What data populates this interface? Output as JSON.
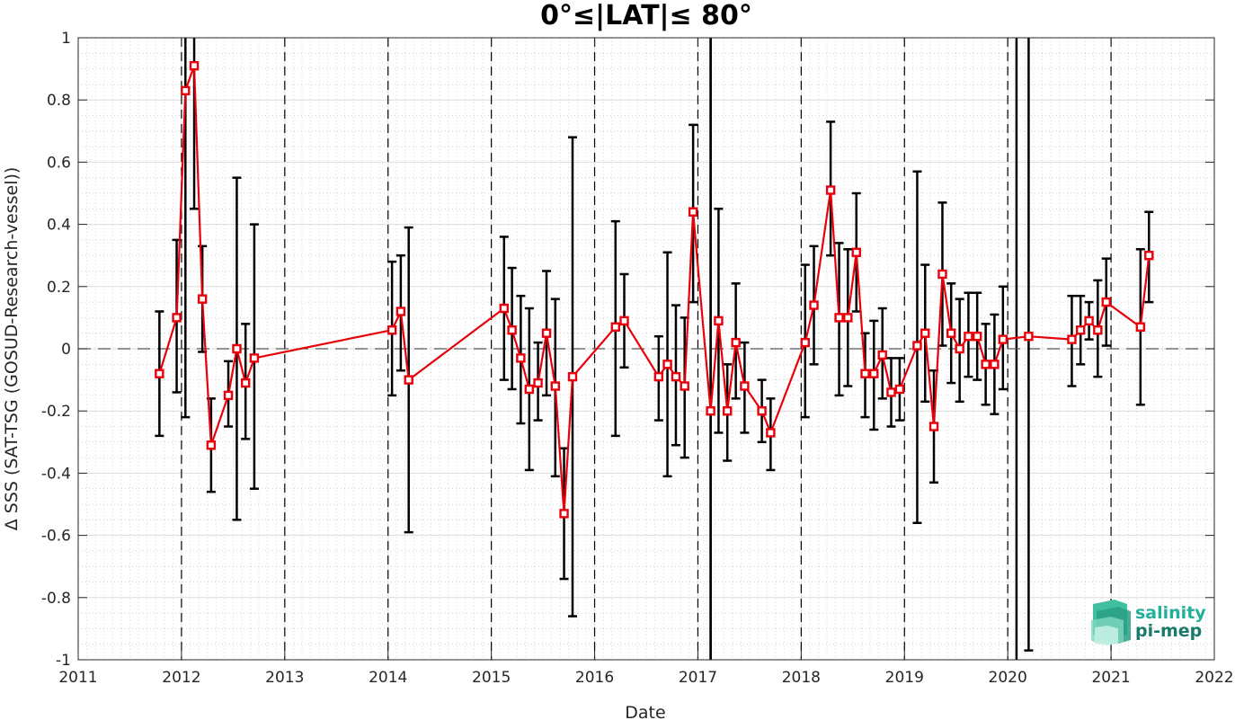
{
  "chart_data": {
    "type": "line",
    "title": "0°≤|LAT|≤ 80°",
    "xlabel": "Date",
    "ylabel": "Δ SSS (SAT-TSG (GOSUD-Research-vessel))",
    "xlim": [
      "2011-01-01",
      "2022-01-01"
    ],
    "ylim": [
      -1,
      1
    ],
    "x_ticks": [
      "2011",
      "2012",
      "2013",
      "2014",
      "2015",
      "2016",
      "2017",
      "2018",
      "2019",
      "2020",
      "2021",
      "2022"
    ],
    "y_ticks": [
      "-1",
      "-0.8",
      "-0.6",
      "-0.4",
      "-0.2",
      "0",
      "0.2",
      "0.4",
      "0.6",
      "0.8",
      "1"
    ],
    "grid": true,
    "minor_grid": true,
    "reference_line": 0,
    "year_boundaries_dashed": [
      "2012-01-01",
      "2013-01-01",
      "2014-01-01",
      "2015-01-01",
      "2016-01-01",
      "2017-01-01",
      "2018-01-01",
      "2019-01-01",
      "2020-01-01",
      "2021-01-01"
    ],
    "solid_vertical_lines": [
      "2017-02-15",
      "2020-02-01"
    ],
    "series": [
      {
        "color": "#e8000b",
        "marker": "square",
        "errorbar_color": "#000000",
        "points": [
          {
            "x": "2011-10-15",
            "y": -0.08,
            "lo": -0.28,
            "hi": 0.12
          },
          {
            "x": "2011-12-15",
            "y": 0.1,
            "lo": -0.14,
            "hi": 0.35
          },
          {
            "x": "2012-01-15",
            "y": 0.83,
            "lo": -0.22,
            "hi": 1.0
          },
          {
            "x": "2012-02-15",
            "y": 0.91,
            "lo": 0.45,
            "hi": 1.0
          },
          {
            "x": "2012-03-15",
            "y": 0.16,
            "lo": -0.01,
            "hi": 0.33
          },
          {
            "x": "2012-04-15",
            "y": -0.31,
            "lo": -0.46,
            "hi": -0.16
          },
          {
            "x": "2012-06-15",
            "y": -0.15,
            "lo": -0.25,
            "hi": -0.04
          },
          {
            "x": "2012-07-15",
            "y": 0.0,
            "lo": -0.55,
            "hi": 0.55
          },
          {
            "x": "2012-08-15",
            "y": -0.11,
            "lo": -0.29,
            "hi": 0.08
          },
          {
            "x": "2012-09-15",
            "y": -0.03,
            "lo": -0.45,
            "hi": 0.4
          },
          {
            "x": "2014-01-15",
            "y": 0.06,
            "lo": -0.15,
            "hi": 0.28
          },
          {
            "x": "2014-02-15",
            "y": 0.12,
            "lo": -0.07,
            "hi": 0.3
          },
          {
            "x": "2014-03-15",
            "y": -0.1,
            "lo": -0.59,
            "hi": 0.39
          },
          {
            "x": "2015-02-15",
            "y": 0.13,
            "lo": -0.1,
            "hi": 0.36
          },
          {
            "x": "2015-03-15",
            "y": 0.06,
            "lo": -0.13,
            "hi": 0.26
          },
          {
            "x": "2015-04-15",
            "y": -0.03,
            "lo": -0.24,
            "hi": 0.17
          },
          {
            "x": "2015-05-15",
            "y": -0.13,
            "lo": -0.39,
            "hi": 0.13
          },
          {
            "x": "2015-06-15",
            "y": -0.11,
            "lo": -0.23,
            "hi": 0.02
          },
          {
            "x": "2015-07-15",
            "y": 0.05,
            "lo": -0.15,
            "hi": 0.25
          },
          {
            "x": "2015-08-15",
            "y": -0.12,
            "lo": -0.41,
            "hi": 0.16
          },
          {
            "x": "2015-09-15",
            "y": -0.53,
            "lo": -0.74,
            "hi": -0.32
          },
          {
            "x": "2015-10-15",
            "y": -0.09,
            "lo": -0.86,
            "hi": 0.68
          },
          {
            "x": "2016-03-15",
            "y": 0.07,
            "lo": -0.28,
            "hi": 0.41
          },
          {
            "x": "2016-04-15",
            "y": 0.09,
            "lo": -0.06,
            "hi": 0.24
          },
          {
            "x": "2016-08-15",
            "y": -0.09,
            "lo": -0.23,
            "hi": 0.04
          },
          {
            "x": "2016-09-15",
            "y": -0.05,
            "lo": -0.41,
            "hi": 0.31
          },
          {
            "x": "2016-10-15",
            "y": -0.09,
            "lo": -0.31,
            "hi": 0.14
          },
          {
            "x": "2016-11-15",
            "y": -0.12,
            "lo": -0.35,
            "hi": 0.1
          },
          {
            "x": "2016-12-15",
            "y": 0.44,
            "lo": 0.15,
            "hi": 0.72
          },
          {
            "x": "2017-02-15",
            "y": -0.2,
            "lo": -1.0,
            "hi": 1.0
          },
          {
            "x": "2017-03-15",
            "y": 0.09,
            "lo": -0.27,
            "hi": 0.45
          },
          {
            "x": "2017-04-15",
            "y": -0.2,
            "lo": -0.36,
            "hi": -0.05
          },
          {
            "x": "2017-05-15",
            "y": 0.02,
            "lo": -0.16,
            "hi": 0.21
          },
          {
            "x": "2017-06-15",
            "y": -0.12,
            "lo": -0.27,
            "hi": 0.02
          },
          {
            "x": "2017-08-15",
            "y": -0.2,
            "lo": -0.3,
            "hi": -0.1
          },
          {
            "x": "2017-09-15",
            "y": -0.27,
            "lo": -0.39,
            "hi": -0.16
          },
          {
            "x": "2018-01-15",
            "y": 0.02,
            "lo": -0.22,
            "hi": 0.27
          },
          {
            "x": "2018-02-15",
            "y": 0.14,
            "lo": -0.05,
            "hi": 0.33
          },
          {
            "x": "2018-04-15",
            "y": 0.51,
            "lo": 0.3,
            "hi": 0.73
          },
          {
            "x": "2018-05-15",
            "y": 0.1,
            "lo": -0.15,
            "hi": 0.34
          },
          {
            "x": "2018-06-15",
            "y": 0.1,
            "lo": -0.12,
            "hi": 0.32
          },
          {
            "x": "2018-07-15",
            "y": 0.31,
            "lo": 0.12,
            "hi": 0.5
          },
          {
            "x": "2018-08-15",
            "y": -0.08,
            "lo": -0.22,
            "hi": 0.05
          },
          {
            "x": "2018-09-15",
            "y": -0.08,
            "lo": -0.26,
            "hi": 0.09
          },
          {
            "x": "2018-10-15",
            "y": -0.02,
            "lo": -0.16,
            "hi": 0.13
          },
          {
            "x": "2018-11-15",
            "y": -0.14,
            "lo": -0.25,
            "hi": -0.03
          },
          {
            "x": "2018-12-15",
            "y": -0.13,
            "lo": -0.23,
            "hi": -0.03
          },
          {
            "x": "2019-02-15",
            "y": 0.01,
            "lo": -0.56,
            "hi": 0.57
          },
          {
            "x": "2019-03-15",
            "y": 0.05,
            "lo": -0.17,
            "hi": 0.27
          },
          {
            "x": "2019-04-15",
            "y": -0.25,
            "lo": -0.43,
            "hi": -0.07
          },
          {
            "x": "2019-05-15",
            "y": 0.24,
            "lo": 0.01,
            "hi": 0.47
          },
          {
            "x": "2019-06-15",
            "y": 0.05,
            "lo": -0.11,
            "hi": 0.21
          },
          {
            "x": "2019-07-15",
            "y": 0.0,
            "lo": -0.17,
            "hi": 0.16
          },
          {
            "x": "2019-08-15",
            "y": 0.04,
            "lo": -0.09,
            "hi": 0.18
          },
          {
            "x": "2019-09-15",
            "y": 0.04,
            "lo": -0.1,
            "hi": 0.18
          },
          {
            "x": "2019-10-15",
            "y": -0.05,
            "lo": -0.18,
            "hi": 0.08
          },
          {
            "x": "2019-11-15",
            "y": -0.05,
            "lo": -0.21,
            "hi": 0.11
          },
          {
            "x": "2019-12-15",
            "y": 0.03,
            "lo": -0.13,
            "hi": 0.2
          },
          {
            "x": "2020-03-15",
            "y": 0.04,
            "lo": -0.97,
            "hi": 1.0
          },
          {
            "x": "2020-08-15",
            "y": 0.03,
            "lo": -0.12,
            "hi": 0.17
          },
          {
            "x": "2020-09-15",
            "y": 0.06,
            "lo": -0.05,
            "hi": 0.17
          },
          {
            "x": "2020-10-15",
            "y": 0.09,
            "lo": 0.03,
            "hi": 0.15
          },
          {
            "x": "2020-11-15",
            "y": 0.06,
            "lo": -0.09,
            "hi": 0.22
          },
          {
            "x": "2020-12-15",
            "y": 0.15,
            "lo": 0.01,
            "hi": 0.29
          },
          {
            "x": "2021-04-15",
            "y": 0.07,
            "lo": -0.18,
            "hi": 0.32
          },
          {
            "x": "2021-05-15",
            "y": 0.3,
            "lo": 0.15,
            "hi": 0.44
          }
        ]
      }
    ]
  },
  "logo": {
    "line1": "salinity",
    "line2": "pi-mep",
    "color1": "#22b09a",
    "color2": "#1a7a6a"
  }
}
